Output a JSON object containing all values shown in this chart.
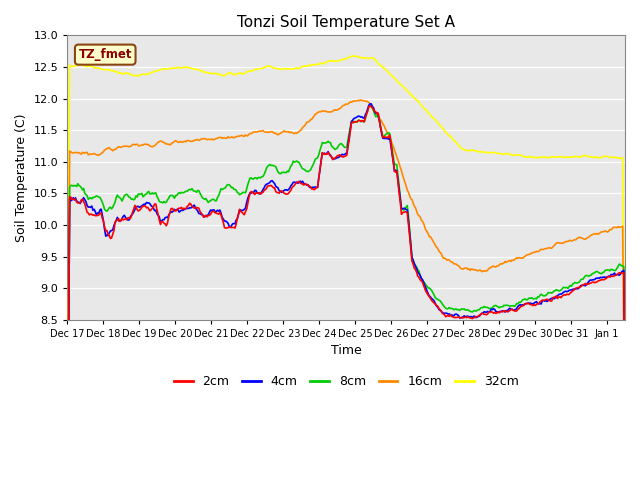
{
  "title": "Tonzi Soil Temperature Set A",
  "xlabel": "Time",
  "ylabel": "Soil Temperature (C)",
  "ylim": [
    8.5,
    13.0
  ],
  "yticks": [
    8.5,
    9.0,
    9.5,
    10.0,
    10.5,
    11.0,
    11.5,
    12.0,
    12.5,
    13.0
  ],
  "colors": {
    "2cm": "#ff0000",
    "4cm": "#0000ff",
    "8cm": "#00cc00",
    "16cm": "#ff8800",
    "32cm": "#ffff00"
  },
  "legend_label": "TZ_fmet",
  "plot_bg": "#e8e8e8",
  "fig_bg": "#ffffff",
  "n_points": 480,
  "xlim": [
    0,
    15.5
  ],
  "tick_labels": [
    "Dec 17",
    "Dec 18",
    "Dec 19",
    "Dec 20",
    "Dec 21",
    "Dec 22",
    "Dec 23",
    "Dec 24",
    "Dec 25",
    "Dec 26",
    "Dec 27",
    "Dec 28",
    "Dec 29",
    "Dec 30",
    "Dec 31",
    "Jan 1"
  ]
}
